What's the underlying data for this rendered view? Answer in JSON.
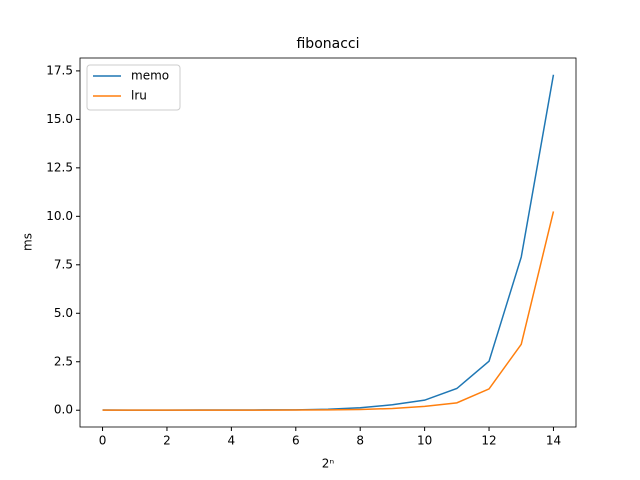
{
  "chart_data": {
    "type": "line",
    "title": "fibonacci",
    "x_label": "2ⁿ",
    "y_label": "ms",
    "x": [
      0,
      1,
      2,
      3,
      4,
      5,
      6,
      7,
      8,
      9,
      10,
      11,
      12,
      13,
      14
    ],
    "series": [
      {
        "name": "memo",
        "color": "#1f77b4",
        "values": [
          0.01,
          0.005,
          0.005,
          0.01,
          0.01,
          0.015,
          0.02,
          0.05,
          0.13,
          0.28,
          0.52,
          1.12,
          2.53,
          7.9,
          17.3
        ]
      },
      {
        "name": "lru",
        "color": "#ff7f0e",
        "values": [
          0.005,
          0.005,
          0.005,
          0.005,
          0.005,
          0.005,
          0.01,
          0.02,
          0.04,
          0.09,
          0.2,
          0.38,
          1.1,
          3.4,
          10.25
        ]
      }
    ],
    "xlim": [
      -0.7,
      14.7
    ],
    "xticks": [
      0,
      2,
      4,
      6,
      8,
      10,
      12,
      14
    ],
    "ylim": [
      -0.865,
      18.165
    ],
    "yticks": [
      {
        "value": 0,
        "label": "0.0"
      },
      {
        "value": 2.5,
        "label": "2.5"
      },
      {
        "value": 5,
        "label": "5.0"
      },
      {
        "value": 7.5,
        "label": "7.5"
      },
      {
        "value": 10,
        "label": "10.0"
      },
      {
        "value": 12.5,
        "label": "12.5"
      },
      {
        "value": 15,
        "label": "15.0"
      },
      {
        "value": 17.5,
        "label": "17.5"
      }
    ],
    "grid": false,
    "legend": "upper-left"
  }
}
